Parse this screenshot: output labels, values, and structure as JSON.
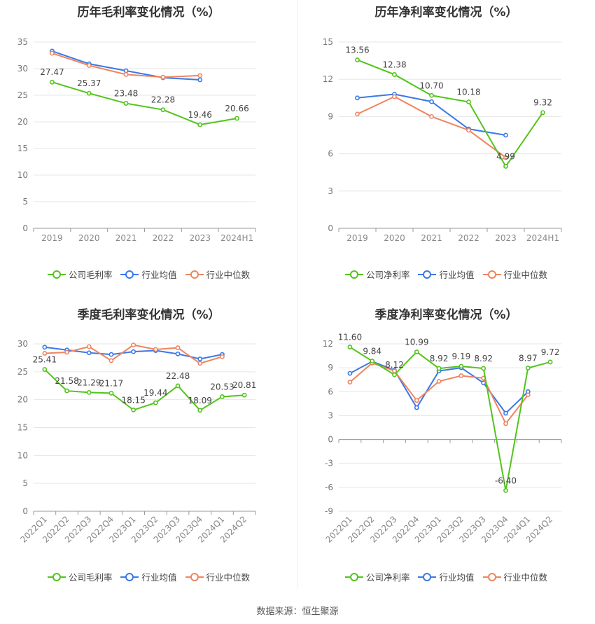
{
  "source": "数据来源：恒生聚源",
  "legend_colors": {
    "company": "#52c41a",
    "avg": "#3b78e7",
    "median": "#f0845f"
  },
  "chart_data": [
    {
      "id": "annual_gross",
      "type": "line",
      "title": "历年毛利率变化情况（%）",
      "categories": [
        "2019",
        "2020",
        "2021",
        "2022",
        "2023",
        "2024H1"
      ],
      "ylim": [
        0,
        35
      ],
      "yticks": [
        0,
        5,
        10,
        15,
        20,
        25,
        30,
        35
      ],
      "series": [
        {
          "name": "公司毛利率",
          "color": "#52c41a",
          "labeled": true,
          "decimals": 2,
          "values": [
            27.47,
            25.37,
            23.48,
            22.28,
            19.46,
            20.66
          ]
        },
        {
          "name": "行业均值",
          "color": "#3b78e7",
          "labeled": false,
          "values": [
            33.3,
            30.9,
            29.6,
            28.3,
            27.9,
            null
          ]
        },
        {
          "name": "行业中位数",
          "color": "#f0845f",
          "labeled": false,
          "values": [
            32.9,
            30.6,
            28.9,
            28.4,
            28.7,
            null
          ]
        }
      ]
    },
    {
      "id": "annual_net",
      "type": "line",
      "title": "历年净利率变化情况（%）",
      "categories": [
        "2019",
        "2020",
        "2021",
        "2022",
        "2023",
        "2024H1"
      ],
      "ylim": [
        0,
        15
      ],
      "yticks": [
        0,
        3,
        6,
        9,
        12,
        15
      ],
      "series": [
        {
          "name": "公司净利率",
          "color": "#52c41a",
          "labeled": true,
          "decimals": 2,
          "values": [
            13.56,
            12.38,
            10.7,
            10.18,
            4.99,
            9.32
          ]
        },
        {
          "name": "行业均值",
          "color": "#3b78e7",
          "labeled": false,
          "values": [
            10.5,
            10.8,
            10.2,
            8.0,
            7.5,
            null
          ]
        },
        {
          "name": "行业中位数",
          "color": "#f0845f",
          "labeled": false,
          "values": [
            9.2,
            10.6,
            9.0,
            7.9,
            5.7,
            null
          ]
        }
      ]
    },
    {
      "id": "quarter_gross",
      "type": "line",
      "title": "季度毛利率变化情况（%）",
      "categories": [
        "2022Q1",
        "2022Q2",
        "2022Q3",
        "2022Q4",
        "2023Q1",
        "2023Q2",
        "2023Q3",
        "2023Q4",
        "2024Q1",
        "2024Q2"
      ],
      "ylim": [
        0,
        30
      ],
      "yticks": [
        0,
        5,
        10,
        15,
        20,
        25,
        30
      ],
      "series": [
        {
          "name": "公司毛利率",
          "color": "#52c41a",
          "labeled": true,
          "decimals": 2,
          "values": [
            25.41,
            21.58,
            21.29,
            21.17,
            18.15,
            19.44,
            22.48,
            18.09,
            20.53,
            20.81
          ]
        },
        {
          "name": "行业均值",
          "color": "#3b78e7",
          "labeled": false,
          "values": [
            29.4,
            28.9,
            28.4,
            28.1,
            28.6,
            28.8,
            28.2,
            27.3,
            28.1,
            null
          ]
        },
        {
          "name": "行业中位数",
          "color": "#f0845f",
          "labeled": false,
          "values": [
            28.3,
            28.5,
            29.5,
            27.0,
            29.8,
            29.0,
            29.3,
            26.5,
            27.7,
            null
          ]
        }
      ]
    },
    {
      "id": "quarter_net",
      "type": "line",
      "title": "季度净利率变化情况（%）",
      "categories": [
        "2022Q1",
        "2022Q2",
        "2022Q3",
        "2022Q4",
        "2023Q1",
        "2023Q2",
        "2023Q3",
        "2023Q4",
        "2024Q1",
        "2024Q2"
      ],
      "ylim": [
        -9,
        12
      ],
      "yticks": [
        -9,
        -6,
        -3,
        0,
        3,
        6,
        9,
        12
      ],
      "series": [
        {
          "name": "公司净利率",
          "color": "#52c41a",
          "labeled": true,
          "decimals": 2,
          "values": [
            11.6,
            9.84,
            8.12,
            10.99,
            8.92,
            9.19,
            8.92,
            -6.4,
            8.97,
            9.72
          ]
        },
        {
          "name": "行业均值",
          "color": "#3b78e7",
          "labeled": false,
          "values": [
            8.3,
            9.8,
            8.7,
            4.0,
            8.6,
            9.0,
            7.1,
            3.3,
            6.0,
            null
          ]
        },
        {
          "name": "行业中位数",
          "color": "#f0845f",
          "labeled": false,
          "values": [
            7.2,
            9.6,
            8.6,
            4.9,
            7.3,
            8.0,
            7.7,
            2.0,
            5.6,
            null
          ]
        }
      ]
    }
  ]
}
